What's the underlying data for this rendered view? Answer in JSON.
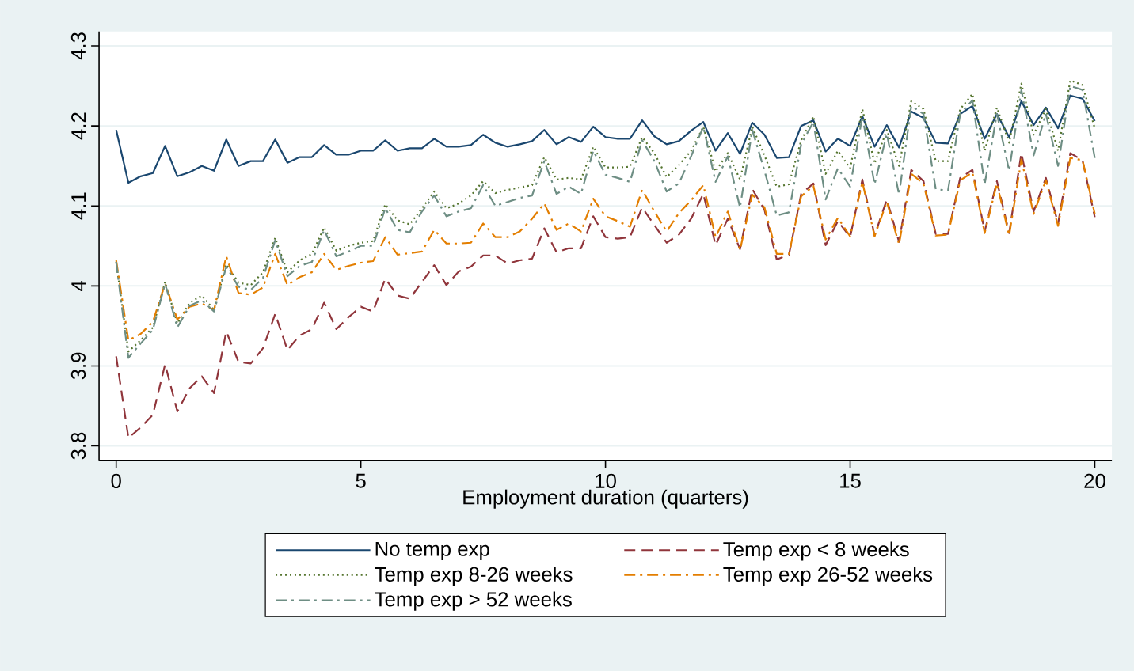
{
  "chart_data": {
    "type": "line",
    "xlabel": "Employment duration (quarters)",
    "x": [
      0,
      0.25,
      0.5,
      0.75,
      1,
      1.25,
      1.5,
      1.75,
      2,
      2.25,
      2.5,
      2.75,
      3,
      3.25,
      3.5,
      3.75,
      4,
      4.25,
      4.5,
      4.75,
      5,
      5.25,
      5.5,
      5.75,
      6,
      6.25,
      6.5,
      6.75,
      7,
      7.25,
      7.5,
      7.75,
      8,
      8.25,
      8.5,
      8.75,
      9,
      9.25,
      9.5,
      9.75,
      10,
      10.25,
      10.5,
      10.75,
      11,
      11.25,
      11.5,
      11.75,
      12,
      12.25,
      12.5,
      12.75,
      13,
      13.25,
      13.5,
      13.75,
      14,
      14.25,
      14.5,
      14.75,
      15,
      15.25,
      15.5,
      15.75,
      16,
      16.25,
      16.5,
      16.75,
      17,
      17.25,
      17.5,
      17.75,
      18,
      18.25,
      18.5,
      18.75,
      19,
      19.25,
      19.5,
      19.75,
      20
    ],
    "series": [
      {
        "name": "No temp exp",
        "color": "#1a476f",
        "line_style": "solid",
        "values": [
          4.195,
          4.129,
          4.137,
          4.141,
          4.175,
          4.137,
          4.142,
          4.15,
          4.144,
          4.183,
          4.15,
          4.156,
          4.156,
          4.183,
          4.154,
          4.161,
          4.161,
          4.176,
          4.164,
          4.164,
          4.169,
          4.169,
          4.182,
          4.169,
          4.172,
          4.172,
          4.184,
          4.174,
          4.174,
          4.176,
          4.189,
          4.179,
          4.174,
          4.177,
          4.181,
          4.195,
          4.177,
          4.186,
          4.18,
          4.199,
          4.186,
          4.184,
          4.184,
          4.207,
          4.187,
          4.177,
          4.181,
          4.194,
          4.205,
          4.169,
          4.191,
          4.165,
          4.204,
          4.189,
          4.16,
          4.161,
          4.2,
          4.207,
          4.168,
          4.184,
          4.175,
          4.212,
          4.174,
          4.201,
          4.173,
          4.218,
          4.21,
          4.179,
          4.178,
          4.215,
          4.225,
          4.184,
          4.215,
          4.186,
          4.231,
          4.201,
          4.223,
          4.197,
          4.238,
          4.234,
          4.206
        ]
      },
      {
        "name": "Temp exp < 8 weeks",
        "color": "#90353b",
        "line_style": "dashed",
        "values": [
          3.912,
          3.81,
          3.823,
          3.839,
          3.902,
          3.843,
          3.872,
          3.887,
          3.866,
          3.943,
          3.905,
          3.903,
          3.922,
          3.965,
          3.92,
          3.938,
          3.946,
          3.979,
          3.946,
          3.961,
          3.974,
          3.968,
          4.009,
          3.988,
          3.984,
          4.005,
          4.026,
          4.001,
          4.018,
          4.024,
          4.038,
          4.038,
          4.028,
          4.032,
          4.034,
          4.072,
          4.042,
          4.047,
          4.047,
          4.087,
          4.061,
          4.059,
          4.061,
          4.098,
          4.076,
          4.054,
          4.064,
          4.084,
          4.115,
          4.051,
          4.084,
          4.046,
          4.121,
          4.095,
          4.033,
          4.039,
          4.115,
          4.128,
          4.051,
          4.081,
          4.061,
          4.133,
          4.063,
          4.108,
          4.055,
          4.145,
          4.131,
          4.065,
          4.065,
          4.135,
          4.145,
          4.068,
          4.131,
          4.066,
          4.166,
          4.093,
          4.135,
          4.078,
          4.166,
          4.157,
          4.086
        ]
      },
      {
        "name": "Temp exp 8-26 weeks",
        "color": "#55752f",
        "line_style": "dotted",
        "values": [
          4.03,
          3.918,
          3.932,
          3.948,
          4.005,
          3.953,
          3.979,
          3.988,
          3.97,
          4.027,
          4.004,
          4.001,
          4.017,
          4.06,
          4.017,
          4.032,
          4.04,
          4.073,
          4.044,
          4.05,
          4.054,
          4.056,
          4.102,
          4.082,
          4.077,
          4.097,
          4.118,
          4.097,
          4.103,
          4.113,
          4.131,
          4.116,
          4.12,
          4.123,
          4.126,
          4.161,
          4.133,
          4.135,
          4.133,
          4.174,
          4.148,
          4.148,
          4.149,
          4.186,
          4.166,
          4.136,
          4.151,
          4.169,
          4.199,
          4.143,
          4.166,
          4.133,
          4.199,
          4.163,
          4.124,
          4.127,
          4.182,
          4.212,
          4.14,
          4.169,
          4.147,
          4.221,
          4.153,
          4.195,
          4.15,
          4.231,
          4.221,
          4.156,
          4.156,
          4.221,
          4.24,
          4.169,
          4.223,
          4.179,
          4.253,
          4.189,
          4.221,
          4.169,
          4.257,
          4.251,
          4.197
        ]
      },
      {
        "name": "Temp exp 26-52 weeks",
        "color": "#e37e00",
        "line_style": "dashdot",
        "values": [
          4.032,
          3.932,
          3.94,
          3.955,
          4.003,
          3.958,
          3.974,
          3.978,
          3.97,
          4.037,
          3.991,
          3.989,
          3.998,
          4.04,
          4.001,
          4.011,
          4.017,
          4.04,
          4.02,
          4.025,
          4.029,
          4.031,
          4.061,
          4.039,
          4.041,
          4.043,
          4.07,
          4.053,
          4.053,
          4.054,
          4.078,
          4.061,
          4.061,
          4.068,
          4.084,
          4.103,
          4.07,
          4.078,
          4.068,
          4.109,
          4.087,
          4.081,
          4.074,
          4.12,
          4.093,
          4.068,
          4.091,
          4.107,
          4.126,
          4.061,
          4.093,
          4.045,
          4.114,
          4.098,
          4.04,
          4.04,
          4.112,
          4.125,
          4.058,
          4.085,
          4.062,
          4.13,
          4.062,
          4.105,
          4.052,
          4.14,
          4.128,
          4.063,
          4.064,
          4.132,
          4.142,
          4.066,
          4.128,
          4.063,
          4.158,
          4.09,
          4.132,
          4.075,
          4.16,
          4.157,
          4.09
        ]
      },
      {
        "name": "Temp exp > 52 weeks",
        "color": "#6e8e84",
        "line_style": "dashdot",
        "values": [
          4.03,
          3.91,
          3.928,
          3.945,
          4.003,
          3.948,
          3.975,
          3.982,
          3.968,
          4.024,
          3.999,
          3.995,
          4.01,
          4.057,
          4.012,
          4.025,
          4.03,
          4.07,
          4.037,
          4.043,
          4.05,
          4.05,
          4.097,
          4.07,
          4.067,
          4.093,
          4.113,
          4.087,
          4.093,
          4.097,
          4.126,
          4.1,
          4.105,
          4.11,
          4.113,
          4.156,
          4.115,
          4.124,
          4.115,
          4.169,
          4.139,
          4.135,
          4.13,
          4.182,
          4.156,
          4.118,
          4.128,
          4.162,
          4.199,
          4.13,
          4.162,
          4.098,
          4.195,
          4.144,
          4.088,
          4.092,
          4.177,
          4.205,
          4.108,
          4.147,
          4.124,
          4.212,
          4.127,
          4.19,
          4.114,
          4.225,
          4.215,
          4.121,
          4.119,
          4.215,
          4.232,
          4.127,
          4.215,
          4.144,
          4.245,
          4.163,
          4.215,
          4.15,
          4.25,
          4.245,
          4.16
        ]
      }
    ],
    "xlim": [
      -0.35,
      20.35
    ],
    "ylim": [
      3.782,
      4.318
    ],
    "xticks": [
      0,
      5,
      10,
      15,
      20
    ],
    "yticks": [
      3.8,
      3.9,
      4,
      4.1,
      4.2,
      4.3
    ],
    "grid": "y",
    "legend": "bottom"
  }
}
